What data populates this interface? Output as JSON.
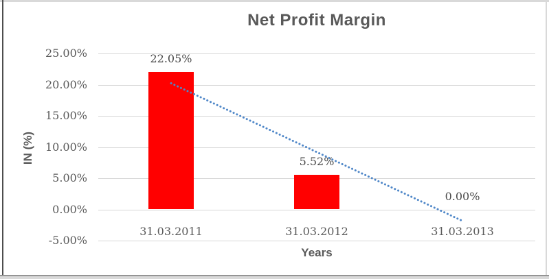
{
  "chart_data": {
    "type": "bar",
    "title": "Net Profit Margin",
    "xlabel": "Years",
    "ylabel": "IN (%)",
    "categories": [
      "31.03.2011",
      "31.03.2012",
      "31.03.2013"
    ],
    "values": [
      22.05,
      5.52,
      0.0
    ],
    "data_labels": [
      "22.05%",
      "5.52%",
      "0.00%"
    ],
    "yticks": [
      {
        "value": 25,
        "label": "25.00%"
      },
      {
        "value": 20,
        "label": "20.00%"
      },
      {
        "value": 15,
        "label": "15.00%"
      },
      {
        "value": 10,
        "label": "10.00%"
      },
      {
        "value": 5,
        "label": "5.00%"
      },
      {
        "value": 0,
        "label": "0.00%"
      },
      {
        "value": -5,
        "label": "-5.00%"
      }
    ],
    "ylim": [
      -5,
      25
    ],
    "grid": true,
    "legend": "none",
    "bar_color": "#ff0000",
    "title_color": "#595959",
    "axis_text_color": "#595959",
    "gridline_color": "#d6d6d6",
    "trendline": {
      "type": "linear",
      "style": "dotted",
      "color": "#4f87c8",
      "start_value_pct": 20.22,
      "end_value_pct": -1.84
    }
  }
}
